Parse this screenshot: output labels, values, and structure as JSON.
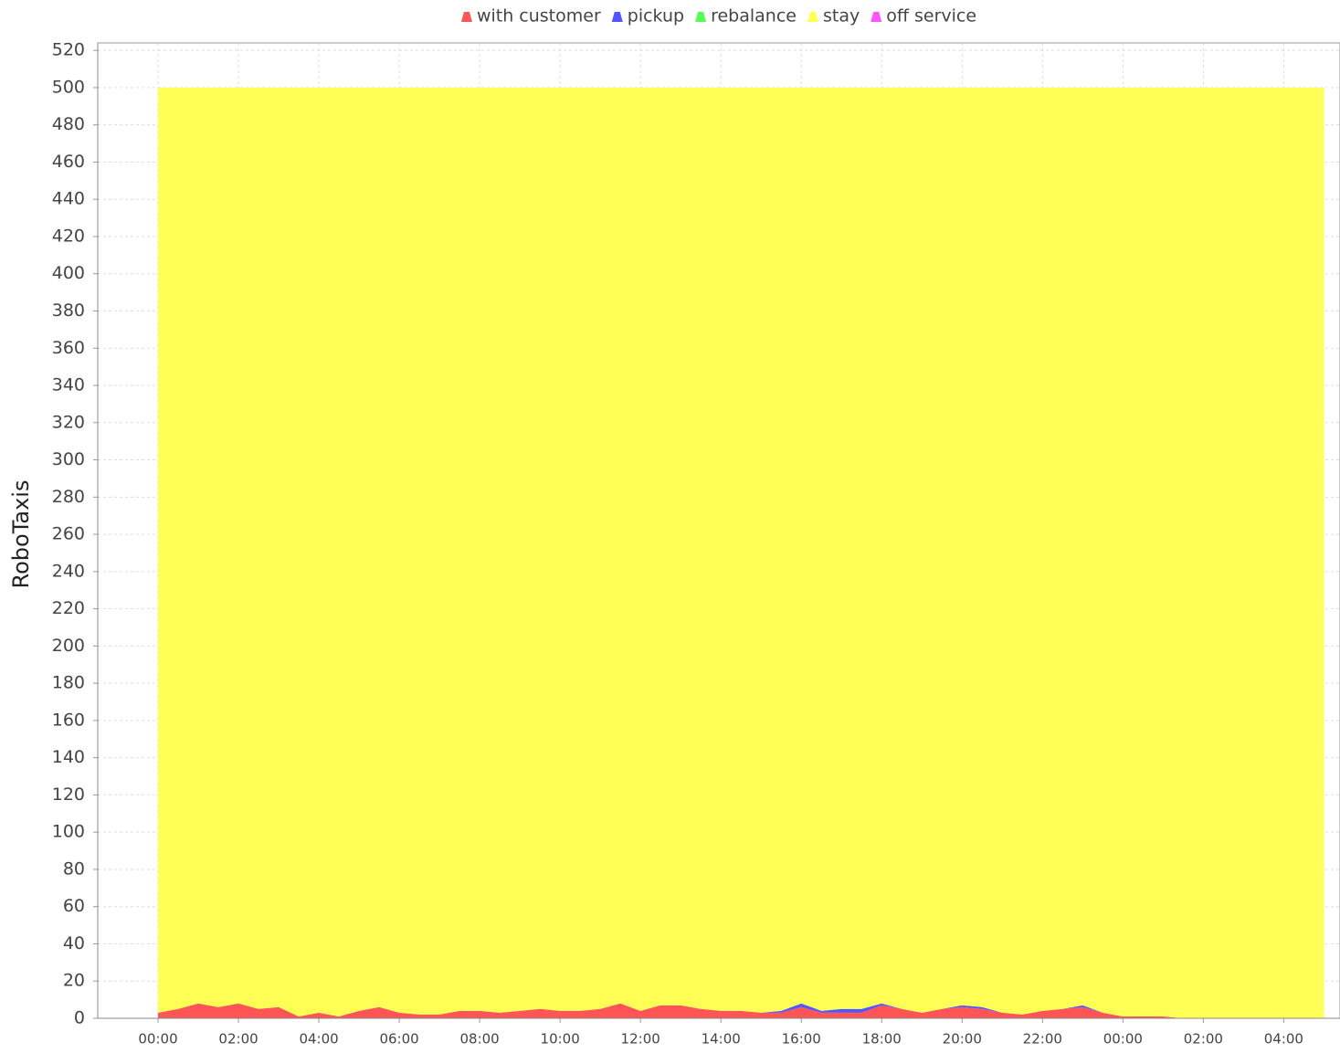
{
  "chart_data": {
    "type": "stacked_area",
    "y_label": "RoboTaxis",
    "x": [
      0,
      0.5,
      1,
      1.5,
      2,
      2.5,
      3,
      3.5,
      4,
      4.5,
      5,
      5.5,
      6,
      6.5,
      7,
      7.5,
      8,
      8.5,
      9,
      9.5,
      10,
      10.5,
      11,
      11.5,
      12,
      12.5,
      13,
      13.5,
      14,
      14.5,
      15,
      15.5,
      16,
      16.5,
      17,
      17.5,
      18,
      18.5,
      19,
      19.5,
      20,
      20.5,
      21,
      21.5,
      22,
      22.5,
      23,
      23.5,
      24,
      24.5,
      25,
      25.5,
      26,
      26.5,
      27,
      27.5,
      28,
      28.5,
      29
    ],
    "series": [
      {
        "name": "with customer",
        "color": "#ff5555",
        "values": [
          3,
          5,
          8,
          6,
          8,
          5,
          6,
          1,
          3,
          1,
          4,
          6,
          3,
          2,
          2,
          4,
          4,
          3,
          4,
          5,
          4,
          4,
          5,
          8,
          4,
          7,
          7,
          5,
          4,
          4,
          3,
          3,
          6,
          3,
          3,
          3,
          7,
          5,
          3,
          5,
          6,
          5,
          3,
          2,
          4,
          5,
          6,
          3,
          1,
          1,
          1,
          0,
          0,
          0,
          0,
          0,
          0,
          0,
          0
        ]
      },
      {
        "name": "pickup",
        "color": "#5555ff",
        "values": [
          0,
          0,
          0,
          0,
          0,
          0,
          0,
          0,
          0,
          0,
          0,
          0,
          0,
          0,
          0,
          0,
          0,
          0,
          0,
          0,
          0,
          0,
          0,
          0,
          0,
          0,
          0,
          0,
          0,
          0,
          0,
          1,
          2,
          1,
          2,
          2,
          1,
          0,
          0,
          0,
          1,
          1,
          0,
          0,
          0,
          0,
          1,
          0,
          0,
          0,
          0,
          0,
          0,
          0,
          0,
          0,
          0,
          0,
          0
        ]
      },
      {
        "name": "rebalance",
        "color": "#55ff55",
        "values": [
          0,
          0,
          0,
          0,
          0,
          0,
          0,
          0,
          0,
          0,
          0,
          0,
          0,
          0,
          0,
          0,
          0,
          0,
          0,
          0,
          0,
          0,
          0,
          0,
          0,
          0,
          0,
          0,
          0,
          0,
          0,
          0,
          0,
          0,
          0,
          0,
          0,
          0,
          0,
          0,
          0,
          0,
          0,
          0,
          0,
          0,
          0,
          0,
          0,
          0,
          0,
          0,
          0,
          0,
          0,
          0,
          0,
          0,
          0
        ]
      },
      {
        "name": "stay",
        "color": "#ffff55",
        "values": [
          497,
          495,
          492,
          494,
          492,
          495,
          494,
          499,
          497,
          499,
          496,
          494,
          497,
          498,
          498,
          496,
          496,
          497,
          496,
          495,
          496,
          496,
          495,
          492,
          496,
          493,
          493,
          495,
          496,
          496,
          497,
          496,
          492,
          496,
          495,
          495,
          492,
          495,
          497,
          495,
          493,
          494,
          497,
          498,
          496,
          495,
          493,
          497,
          499,
          499,
          499,
          500,
          500,
          500,
          500,
          500,
          500,
          500,
          500
        ]
      },
      {
        "name": "off service",
        "color": "#ff55ff",
        "values": [
          0,
          0,
          0,
          0,
          0,
          0,
          0,
          0,
          0,
          0,
          0,
          0,
          0,
          0,
          0,
          0,
          0,
          0,
          0,
          0,
          0,
          0,
          0,
          0,
          0,
          0,
          0,
          0,
          0,
          0,
          0,
          0,
          0,
          0,
          0,
          0,
          0,
          0,
          0,
          0,
          0,
          0,
          0,
          0,
          0,
          0,
          0,
          0,
          0,
          0,
          0,
          0,
          0,
          0,
          0,
          0,
          0,
          0,
          0
        ]
      }
    ],
    "xlim": [
      -1.5,
      29.4
    ],
    "ylim": [
      0,
      524
    ],
    "xticks": [
      {
        "value": 0,
        "label": "00:00"
      },
      {
        "value": 2,
        "label": "02:00"
      },
      {
        "value": 4,
        "label": "04:00"
      },
      {
        "value": 6,
        "label": "06:00"
      },
      {
        "value": 8,
        "label": "08:00"
      },
      {
        "value": 10,
        "label": "10:00"
      },
      {
        "value": 12,
        "label": "12:00"
      },
      {
        "value": 14,
        "label": "14:00"
      },
      {
        "value": 16,
        "label": "16:00"
      },
      {
        "value": 18,
        "label": "18:00"
      },
      {
        "value": 20,
        "label": "20:00"
      },
      {
        "value": 22,
        "label": "22:00"
      },
      {
        "value": 24,
        "label": "00:00"
      },
      {
        "value": 26,
        "label": "02:00"
      },
      {
        "value": 28,
        "label": "04:00"
      }
    ],
    "yticks": [
      0,
      20,
      40,
      60,
      80,
      100,
      120,
      140,
      160,
      180,
      200,
      220,
      240,
      260,
      280,
      300,
      320,
      340,
      360,
      380,
      400,
      420,
      440,
      460,
      480,
      500,
      520
    ],
    "grid": true,
    "legend": "top"
  }
}
